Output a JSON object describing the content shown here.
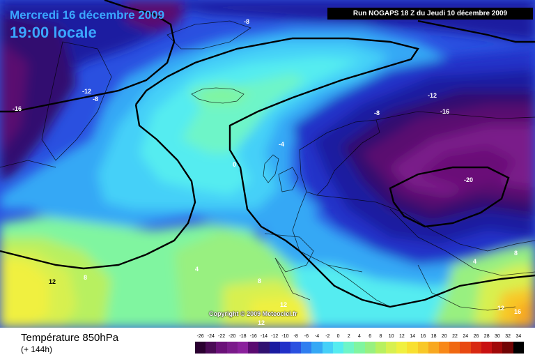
{
  "header": {
    "date": "Mercredi 16 décembre 2009",
    "time": "19:00 locale",
    "run": "Run NOGAPS 18 Z du Jeudi 10 décembre 2009"
  },
  "footer": {
    "parameter": "Température 850hPa",
    "lead_time": "(+ 144h)",
    "copyright": "Copyright © 2009 Meteociel.fr"
  },
  "legend": {
    "values": [
      "-26",
      "-24",
      "-22",
      "-20",
      "-18",
      "-16",
      "-14",
      "-12",
      "-10",
      "-8",
      "-6",
      "-4",
      "-2",
      "0",
      "2",
      "4",
      "6",
      "8",
      "10",
      "12",
      "14",
      "16",
      "18",
      "20",
      "22",
      "24",
      "26",
      "28",
      "30",
      "32",
      "34"
    ],
    "colors": [
      "#2a0030",
      "#4a0a55",
      "#6a1078",
      "#7a1a8a",
      "#8a209c",
      "#5a0a70",
      "#301070",
      "#1a1aa0",
      "#2030c8",
      "#2a50e0",
      "#2f7ef0",
      "#35a8f5",
      "#45d0f8",
      "#55ecf0",
      "#6ef5c8",
      "#80f5a0",
      "#98f080",
      "#b8f060",
      "#d8f050",
      "#f0f040",
      "#f8e030",
      "#f8c828",
      "#f8a820",
      "#f88818",
      "#f06810",
      "#e84810",
      "#d82810",
      "#c81010",
      "#a00808",
      "#700404",
      "#000000"
    ]
  },
  "contour_labels": [
    {
      "text": "-8",
      "color": "light"
    },
    {
      "text": "-12",
      "color": "light"
    },
    {
      "text": "-8",
      "color": "light"
    },
    {
      "text": "-16",
      "color": "light"
    },
    {
      "text": "-12",
      "color": "light"
    },
    {
      "text": "-8",
      "color": "light"
    },
    {
      "text": "-16",
      "color": "light"
    },
    {
      "text": "-4",
      "color": "light"
    },
    {
      "text": "0",
      "color": "light"
    },
    {
      "text": "-20",
      "color": "light"
    },
    {
      "text": "4",
      "color": "light"
    },
    {
      "text": "4",
      "color": "light"
    },
    {
      "text": "8",
      "color": "light"
    },
    {
      "text": "12",
      "color": "dark"
    },
    {
      "text": "8",
      "color": "light"
    },
    {
      "text": "12",
      "color": "light"
    },
    {
      "text": "12",
      "color": "light"
    },
    {
      "text": "12",
      "color": "light"
    },
    {
      "text": "16",
      "color": "light"
    },
    {
      "text": "8",
      "color": "light"
    }
  ]
}
